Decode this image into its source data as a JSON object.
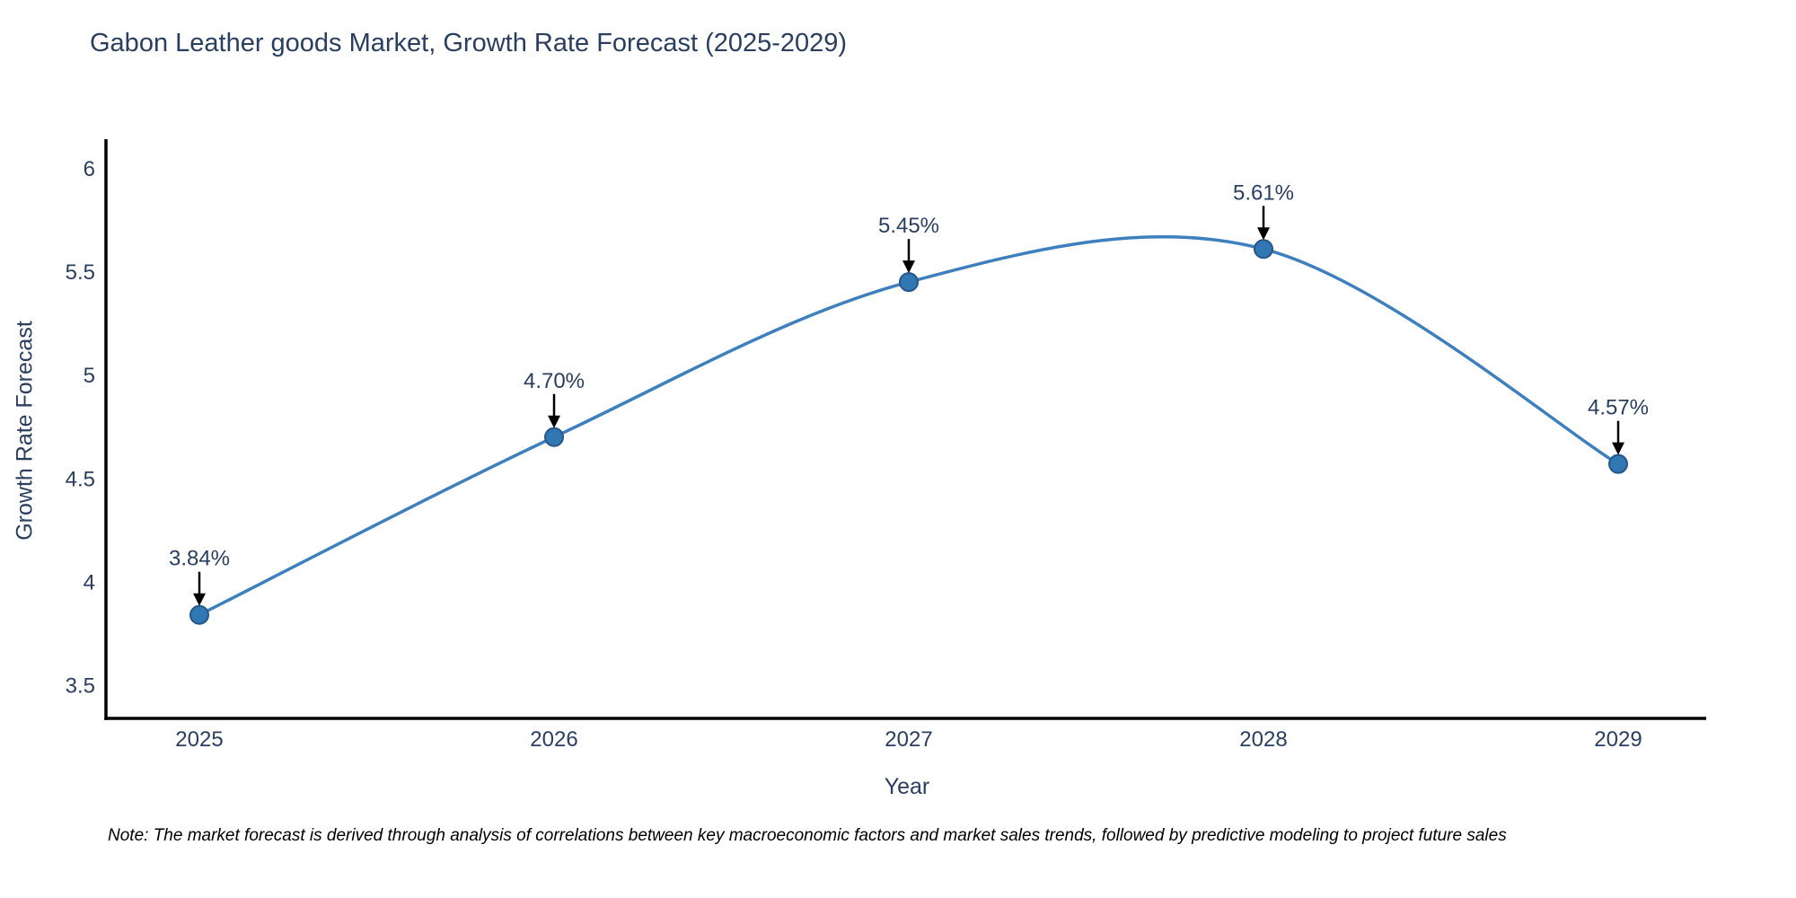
{
  "title": "Gabon Leather goods Market, Growth Rate Forecast (2025-2029)",
  "note": "Note: The market forecast is derived through analysis of correlations between key macroeconomic factors and market sales trends, followed by predictive modeling to project future sales",
  "chart_data": {
    "type": "line",
    "title": "Gabon Leather goods Market, Growth Rate Forecast (2025-2029)",
    "xlabel": "Year",
    "ylabel": "Growth Rate Forecast",
    "x": [
      2025,
      2026,
      2027,
      2028,
      2029
    ],
    "series": [
      {
        "name": "Growth Rate Forecast",
        "values": [
          3.84,
          4.7,
          5.45,
          5.61,
          4.57
        ]
      }
    ],
    "point_labels": [
      "3.84%",
      "4.70%",
      "5.45%",
      "5.61%",
      "4.57%"
    ],
    "yticks": [
      3.5,
      4,
      4.5,
      5,
      5.5,
      6
    ],
    "ylim": [
      3.34,
      6.16
    ],
    "line_shape": "spline",
    "grid": false,
    "legend": "none",
    "colors": {
      "line": "#3e7fbd",
      "marker_fill": "#3077b4",
      "marker_edge": "#25578a",
      "axis": "#000000",
      "text": "#2a3f5f",
      "annotation": "#2a3f5f",
      "arrow": "#000000"
    }
  }
}
